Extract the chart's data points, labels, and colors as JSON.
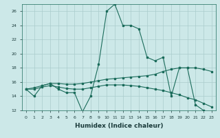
{
  "title": "",
  "xlabel": "Humidex (Indice chaleur)",
  "bg_color": "#cce8e8",
  "grid_color": "#aacccc",
  "line_color": "#1a6b5a",
  "xlim": [
    -0.5,
    23.5
  ],
  "ylim": [
    12,
    27
  ],
  "yticks": [
    12,
    14,
    16,
    18,
    20,
    22,
    24,
    26
  ],
  "xticks": [
    0,
    1,
    2,
    3,
    4,
    5,
    6,
    7,
    8,
    9,
    10,
    11,
    12,
    13,
    14,
    15,
    16,
    17,
    18,
    19,
    20,
    21,
    22,
    23
  ],
  "series1": [
    15.0,
    14.0,
    15.5,
    15.8,
    15.0,
    14.5,
    14.5,
    11.8,
    14.0,
    18.5,
    26.0,
    27.0,
    24.0,
    24.0,
    23.5,
    19.5,
    19.0,
    19.5,
    14.0,
    18.0,
    18.0,
    12.8,
    12.0,
    11.8
  ],
  "series2": [
    15.0,
    15.2,
    15.5,
    15.8,
    15.8,
    15.7,
    15.7,
    15.8,
    16.0,
    16.2,
    16.4,
    16.5,
    16.6,
    16.7,
    16.8,
    16.9,
    17.1,
    17.5,
    17.8,
    18.0,
    18.0,
    18.0,
    17.8,
    17.5
  ],
  "series3": [
    15.0,
    15.0,
    15.3,
    15.5,
    15.3,
    15.1,
    15.0,
    15.0,
    15.2,
    15.4,
    15.6,
    15.6,
    15.6,
    15.5,
    15.4,
    15.2,
    15.0,
    14.8,
    14.5,
    14.2,
    13.8,
    13.5,
    13.0,
    12.5
  ]
}
